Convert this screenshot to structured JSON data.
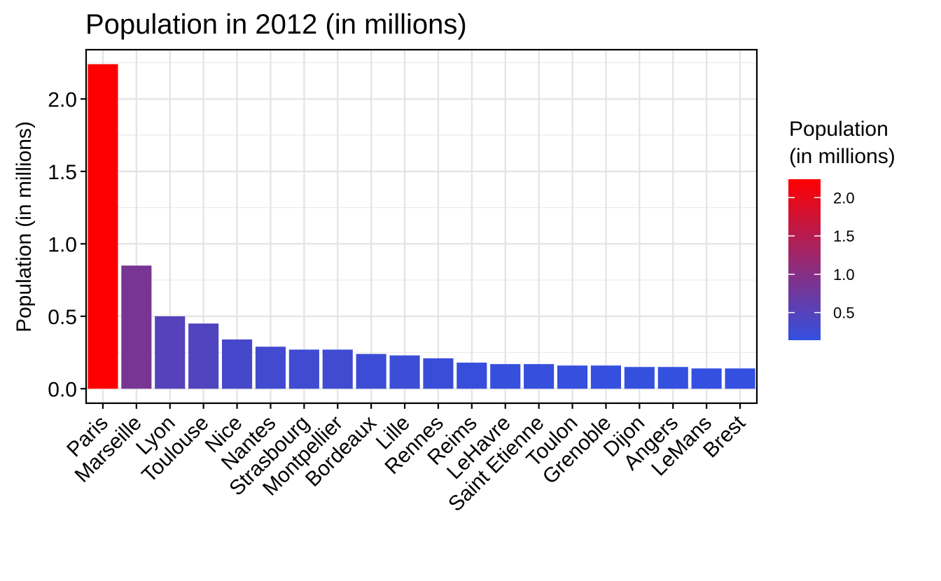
{
  "chart_data": {
    "type": "bar",
    "title": "Population in 2012 (in millions)",
    "xlabel": "",
    "ylabel": "Population (in millions)",
    "categories": [
      "Paris",
      "Marseille",
      "Lyon",
      "Toulouse",
      "Nice",
      "Nantes",
      "Strasbourg",
      "Montpellier",
      "Bordeaux",
      "Lille",
      "Rennes",
      "Reims",
      "LeHavre",
      "Saint Etienne",
      "Toulon",
      "Grenoble",
      "Dijon",
      "Angers",
      "LeMans",
      "Brest"
    ],
    "values": [
      2.24,
      0.85,
      0.5,
      0.45,
      0.34,
      0.29,
      0.27,
      0.27,
      0.24,
      0.23,
      0.21,
      0.18,
      0.17,
      0.17,
      0.16,
      0.16,
      0.15,
      0.15,
      0.14,
      0.14
    ],
    "ylim": [
      -0.1,
      2.34
    ],
    "yticks": [
      0.0,
      0.5,
      1.0,
      1.5,
      2.0
    ],
    "ytick_labels": [
      "0.0",
      "0.5",
      "1.0",
      "1.5",
      "2.0"
    ],
    "grid": true,
    "legend": {
      "title_line1": "Population",
      "title_line2": "(in millions)",
      "position": "right",
      "ticks": [
        0.5,
        1.0,
        1.5,
        2.0
      ],
      "tick_labels": [
        "0.5",
        "1.0",
        "1.5",
        "2.0"
      ],
      "min": 0.14,
      "max": 2.24
    },
    "colors": {
      "low": "#3350e0",
      "high": "#ff0000"
    }
  }
}
